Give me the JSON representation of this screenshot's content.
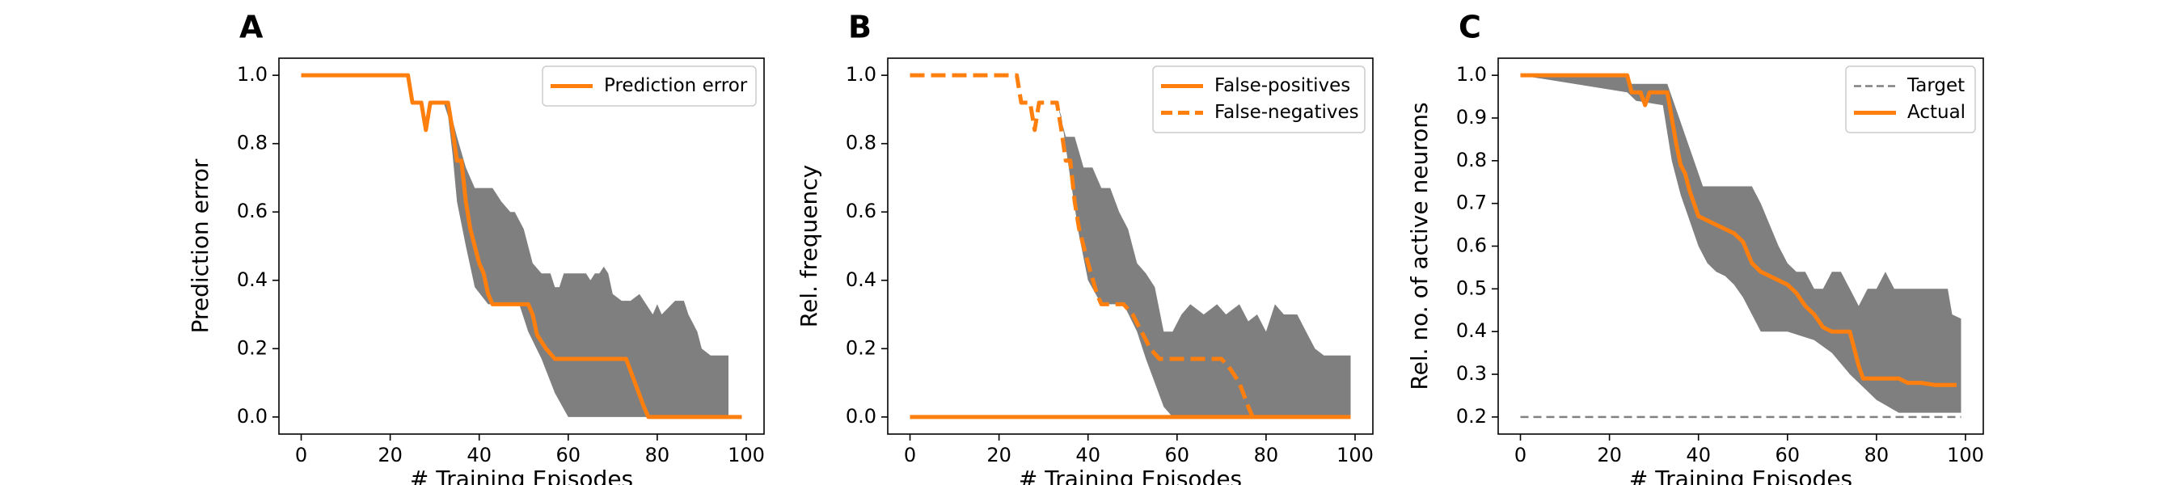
{
  "figure": {
    "colors": {
      "series": "#ff7f0e",
      "band": "#7f7f7f",
      "target": "#808080",
      "axis": "#000000"
    }
  },
  "chart_data": [
    {
      "panel": "A",
      "type": "line",
      "xlabel": "# Training Episodes",
      "ylabel": "Prediction error",
      "xlim": [
        -5,
        104
      ],
      "ylim": [
        -0.05,
        1.05
      ],
      "xticks": [
        0,
        20,
        40,
        60,
        80,
        100
      ],
      "yticks": [
        0.0,
        0.2,
        0.4,
        0.6,
        0.8,
        1.0
      ],
      "tick_labels_x": [
        "0",
        "20",
        "40",
        "60",
        "80",
        "100"
      ],
      "tick_labels_y": [
        "0.0",
        "0.2",
        "0.4",
        "0.6",
        "0.8",
        "1.0"
      ],
      "grid": false,
      "legend": {
        "placement": "top-right"
      },
      "series": [
        {
          "name": "Prediction error",
          "style": "solid",
          "legend": true,
          "points": [
            [
              0,
              1.0
            ],
            [
              24,
              1.0
            ],
            [
              25,
              0.92
            ],
            [
              27,
              0.92
            ],
            [
              28,
              0.84
            ],
            [
              29,
              0.92
            ],
            [
              33,
              0.92
            ],
            [
              34,
              0.84
            ],
            [
              35,
              0.75
            ],
            [
              36,
              0.75
            ],
            [
              37,
              0.63
            ],
            [
              38,
              0.55
            ],
            [
              39,
              0.5
            ],
            [
              40,
              0.45
            ],
            [
              41,
              0.42
            ],
            [
              42,
              0.36
            ],
            [
              43,
              0.33
            ],
            [
              48,
              0.33
            ],
            [
              51,
              0.33
            ],
            [
              52,
              0.3
            ],
            [
              53,
              0.24
            ],
            [
              55,
              0.2
            ],
            [
              57,
              0.17
            ],
            [
              73,
              0.17
            ],
            [
              75,
              0.1
            ],
            [
              77,
              0.03
            ],
            [
              78,
              0.0
            ],
            [
              99,
              0.0
            ]
          ]
        }
      ],
      "band": {
        "upper": [
          [
            0,
            1.0
          ],
          [
            24,
            1.0
          ],
          [
            25,
            0.92
          ],
          [
            33,
            0.92
          ],
          [
            35,
            0.82
          ],
          [
            37,
            0.73
          ],
          [
            39,
            0.67
          ],
          [
            43,
            0.67
          ],
          [
            45,
            0.63
          ],
          [
            47,
            0.6
          ],
          [
            48,
            0.6
          ],
          [
            50,
            0.55
          ],
          [
            52,
            0.45
          ],
          [
            54,
            0.42
          ],
          [
            56,
            0.42
          ],
          [
            57,
            0.38
          ],
          [
            58,
            0.38
          ],
          [
            59,
            0.42
          ],
          [
            64,
            0.42
          ],
          [
            65,
            0.4
          ],
          [
            66,
            0.42
          ],
          [
            67,
            0.42
          ],
          [
            68,
            0.44
          ],
          [
            69,
            0.42
          ],
          [
            70,
            0.36
          ],
          [
            72,
            0.34
          ],
          [
            74,
            0.34
          ],
          [
            76,
            0.36
          ],
          [
            79,
            0.3
          ],
          [
            80,
            0.33
          ],
          [
            81,
            0.3
          ],
          [
            84,
            0.34
          ],
          [
            86,
            0.34
          ],
          [
            87,
            0.3
          ],
          [
            89,
            0.25
          ],
          [
            90,
            0.2
          ],
          [
            92,
            0.18
          ],
          [
            96,
            0.18
          ]
        ],
        "lower": [
          [
            96,
            0.0
          ],
          [
            63,
            0.0
          ],
          [
            60,
            0.0
          ],
          [
            57,
            0.07
          ],
          [
            54,
            0.17
          ],
          [
            51,
            0.25
          ],
          [
            49,
            0.33
          ],
          [
            42,
            0.33
          ],
          [
            39,
            0.38
          ],
          [
            37,
            0.5
          ],
          [
            35,
            0.63
          ],
          [
            34,
            0.77
          ],
          [
            33,
            0.88
          ],
          [
            32,
            0.92
          ],
          [
            25,
            0.92
          ],
          [
            24,
            1.0
          ],
          [
            0,
            1.0
          ]
        ]
      }
    },
    {
      "panel": "B",
      "type": "line",
      "xlabel": "# Training Episodes",
      "ylabel": "Rel. frequency",
      "xlim": [
        -5,
        104
      ],
      "ylim": [
        -0.05,
        1.05
      ],
      "xticks": [
        0,
        20,
        40,
        60,
        80,
        100
      ],
      "yticks": [
        0.0,
        0.2,
        0.4,
        0.6,
        0.8,
        1.0
      ],
      "tick_labels_x": [
        "0",
        "20",
        "40",
        "60",
        "80",
        "100"
      ],
      "tick_labels_y": [
        "0.0",
        "0.2",
        "0.4",
        "0.6",
        "0.8",
        "1.0"
      ],
      "grid": false,
      "legend": {
        "placement": "top-right"
      },
      "series": [
        {
          "name": "False-positives",
          "style": "solid",
          "legend": true,
          "points": [
            [
              0,
              0.0
            ],
            [
              99,
              0.0
            ]
          ]
        },
        {
          "name": "False-negatives",
          "style": "dashed",
          "legend": true,
          "points": [
            [
              0,
              1.0
            ],
            [
              24,
              1.0
            ],
            [
              25,
              0.92
            ],
            [
              27,
              0.92
            ],
            [
              28,
              0.84
            ],
            [
              29,
              0.92
            ],
            [
              33,
              0.92
            ],
            [
              34,
              0.84
            ],
            [
              35,
              0.75
            ],
            [
              36,
              0.75
            ],
            [
              37,
              0.63
            ],
            [
              38,
              0.55
            ],
            [
              40,
              0.45
            ],
            [
              42,
              0.36
            ],
            [
              43,
              0.33
            ],
            [
              48,
              0.33
            ],
            [
              50,
              0.3
            ],
            [
              52,
              0.25
            ],
            [
              54,
              0.2
            ],
            [
              56,
              0.17
            ],
            [
              70,
              0.17
            ],
            [
              72,
              0.14
            ],
            [
              74,
              0.1
            ],
            [
              76,
              0.03
            ],
            [
              77,
              0.0
            ]
          ]
        }
      ],
      "band": {
        "upper": [
          [
            0,
            0.0
          ],
          [
            24,
            1.0
          ],
          [
            25,
            0.92
          ],
          [
            33,
            0.92
          ],
          [
            35,
            0.82
          ],
          [
            37,
            0.82
          ],
          [
            39,
            0.73
          ],
          [
            41,
            0.73
          ],
          [
            43,
            0.67
          ],
          [
            45,
            0.67
          ],
          [
            47,
            0.6
          ],
          [
            49,
            0.55
          ],
          [
            51,
            0.45
          ],
          [
            53,
            0.42
          ],
          [
            55,
            0.38
          ],
          [
            57,
            0.25
          ],
          [
            59,
            0.25
          ],
          [
            61,
            0.3
          ],
          [
            63,
            0.33
          ],
          [
            66,
            0.3
          ],
          [
            69,
            0.33
          ],
          [
            71,
            0.3
          ],
          [
            74,
            0.33
          ],
          [
            76,
            0.28
          ],
          [
            78,
            0.3
          ],
          [
            80,
            0.25
          ],
          [
            82,
            0.33
          ],
          [
            84,
            0.3
          ],
          [
            87,
            0.3
          ],
          [
            89,
            0.25
          ],
          [
            91,
            0.2
          ],
          [
            93,
            0.18
          ],
          [
            99,
            0.18
          ]
        ],
        "lower": [
          [
            99,
            0.0
          ],
          [
            59,
            0.0
          ],
          [
            57,
            0.03
          ],
          [
            55,
            0.1
          ],
          [
            53,
            0.17
          ],
          [
            51,
            0.25
          ],
          [
            48,
            0.33
          ],
          [
            43,
            0.33
          ],
          [
            40,
            0.4
          ],
          [
            38,
            0.53
          ],
          [
            36,
            0.7
          ],
          [
            34,
            0.88
          ],
          [
            33,
            0.92
          ],
          [
            25,
            0.92
          ],
          [
            24,
            1.0
          ],
          [
            0,
            0.0
          ]
        ]
      }
    },
    {
      "panel": "C",
      "type": "line",
      "xlabel": "# Training Episodes",
      "ylabel": "Rel. no. of active neurons",
      "xlim": [
        -5,
        104
      ],
      "ylim": [
        0.16,
        1.04
      ],
      "xticks": [
        0,
        20,
        40,
        60,
        80,
        100
      ],
      "yticks": [
        0.2,
        0.3,
        0.4,
        0.5,
        0.6,
        0.7,
        0.8,
        0.9,
        1.0
      ],
      "tick_labels_x": [
        "0",
        "20",
        "40",
        "60",
        "80",
        "100"
      ],
      "tick_labels_y": [
        "0.2",
        "0.3",
        "0.4",
        "0.5",
        "0.6",
        "0.7",
        "0.8",
        "0.9",
        "1.0"
      ],
      "grid": false,
      "legend": {
        "placement": "top-right"
      },
      "series": [
        {
          "name": "Target",
          "style": "dashed-thin",
          "legend": true,
          "points": [
            [
              0,
              0.2
            ],
            [
              99,
              0.2
            ]
          ]
        },
        {
          "name": "Actual",
          "style": "solid",
          "legend": true,
          "points": [
            [
              0,
              1.0
            ],
            [
              24,
              1.0
            ],
            [
              25,
              0.96
            ],
            [
              26,
              0.96
            ],
            [
              27,
              0.96
            ],
            [
              28,
              0.93
            ],
            [
              29,
              0.96
            ],
            [
              33,
              0.96
            ],
            [
              34,
              0.9
            ],
            [
              35,
              0.84
            ],
            [
              36,
              0.79
            ],
            [
              37,
              0.77
            ],
            [
              38,
              0.73
            ],
            [
              39,
              0.7
            ],
            [
              40,
              0.67
            ],
            [
              42,
              0.66
            ],
            [
              44,
              0.65
            ],
            [
              46,
              0.64
            ],
            [
              48,
              0.63
            ],
            [
              50,
              0.61
            ],
            [
              52,
              0.56
            ],
            [
              54,
              0.54
            ],
            [
              56,
              0.53
            ],
            [
              58,
              0.52
            ],
            [
              60,
              0.51
            ],
            [
              62,
              0.49
            ],
            [
              64,
              0.46
            ],
            [
              66,
              0.44
            ],
            [
              68,
              0.41
            ],
            [
              70,
              0.4
            ],
            [
              74,
              0.4
            ],
            [
              75,
              0.36
            ],
            [
              76,
              0.32
            ],
            [
              77,
              0.29
            ],
            [
              85,
              0.29
            ],
            [
              87,
              0.28
            ],
            [
              90,
              0.28
            ],
            [
              93,
              0.275
            ],
            [
              98,
              0.275
            ]
          ]
        }
      ],
      "band": {
        "upper": [
          [
            0,
            1.0
          ],
          [
            24,
            1.0
          ],
          [
            25,
            0.98
          ],
          [
            33,
            0.98
          ],
          [
            35,
            0.92
          ],
          [
            37,
            0.86
          ],
          [
            39,
            0.8
          ],
          [
            41,
            0.74
          ],
          [
            43,
            0.74
          ],
          [
            52,
            0.74
          ],
          [
            54,
            0.7
          ],
          [
            56,
            0.65
          ],
          [
            58,
            0.6
          ],
          [
            60,
            0.56
          ],
          [
            62,
            0.54
          ],
          [
            64,
            0.54
          ],
          [
            66,
            0.5
          ],
          [
            68,
            0.5
          ],
          [
            70,
            0.54
          ],
          [
            72,
            0.54
          ],
          [
            74,
            0.5
          ],
          [
            76,
            0.46
          ],
          [
            78,
            0.5
          ],
          [
            80,
            0.5
          ],
          [
            82,
            0.54
          ],
          [
            84,
            0.5
          ],
          [
            85,
            0.5
          ],
          [
            96,
            0.5
          ],
          [
            97,
            0.44
          ],
          [
            99,
            0.43
          ]
        ],
        "lower": [
          [
            99,
            0.21
          ],
          [
            96,
            0.21
          ],
          [
            85,
            0.21
          ],
          [
            80,
            0.24
          ],
          [
            74,
            0.3
          ],
          [
            70,
            0.35
          ],
          [
            66,
            0.38
          ],
          [
            60,
            0.4
          ],
          [
            54,
            0.4
          ],
          [
            52,
            0.44
          ],
          [
            50,
            0.48
          ],
          [
            48,
            0.51
          ],
          [
            46,
            0.53
          ],
          [
            44,
            0.54
          ],
          [
            42,
            0.56
          ],
          [
            40,
            0.6
          ],
          [
            38,
            0.66
          ],
          [
            36,
            0.72
          ],
          [
            34,
            0.8
          ],
          [
            32,
            0.93
          ],
          [
            26,
            0.94
          ],
          [
            24,
            0.96
          ],
          [
            0,
            1.0
          ]
        ]
      }
    }
  ]
}
